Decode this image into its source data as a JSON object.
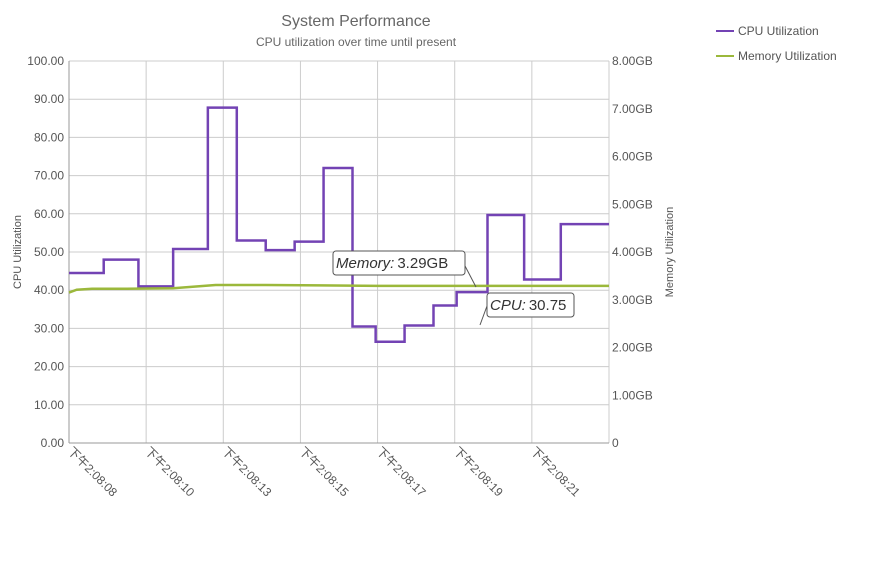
{
  "chart_data": {
    "type": "line",
    "title": "System Performance",
    "subtitle": "CPU utilization over time until present",
    "x_ticks": [
      "下午2:08:08",
      "下午2:08:10",
      "下午2:08:13",
      "下午2:08:15",
      "下午2:08:17",
      "下午2:08:19",
      "下午2:08:21"
    ],
    "x_range_seconds_after_2_08_08": [
      0,
      14
    ],
    "left_axis": {
      "label": "CPU Utilization",
      "ylim": [
        0,
        100
      ],
      "ticks": [
        "0.00",
        "10.00",
        "20.00",
        "30.00",
        "40.00",
        "50.00",
        "60.00",
        "70.00",
        "80.00",
        "90.00",
        "100.00"
      ]
    },
    "right_axis": {
      "label": "Memory Utilization",
      "ylim": [
        0,
        8
      ],
      "ticks": [
        "0",
        "1.00GB",
        "2.00GB",
        "3.00GB",
        "4.00GB",
        "5.00GB",
        "6.00GB",
        "7.00GB",
        "8.00GB"
      ]
    },
    "series": [
      {
        "name": "CPU Utilization",
        "axis": "left",
        "color": "#7343b4",
        "step": true,
        "x": [
          0,
          0.9,
          1.8,
          2.7,
          3.6,
          4.35,
          5.1,
          5.85,
          6.6,
          7.35,
          7.95,
          8.7,
          9.45,
          10.05,
          10.85,
          11.8,
          12.75,
          13.75,
          14
        ],
        "y": [
          44.5,
          48,
          41,
          50.8,
          87.8,
          53,
          50.5,
          52.7,
          72,
          30.5,
          26.5,
          30.75,
          36,
          39.5,
          59.7,
          42.8,
          57.3,
          57.3,
          57.3
        ]
      },
      {
        "name": "Memory Utilization",
        "axis": "right",
        "color": "#9bb83b",
        "step": false,
        "x": [
          0,
          0.2,
          0.6,
          1.5,
          2.7,
          3.8,
          5.1,
          6.5,
          8,
          9.5,
          11,
          12.5,
          14
        ],
        "y": [
          3.15,
          3.21,
          3.23,
          3.23,
          3.24,
          3.31,
          3.31,
          3.3,
          3.29,
          3.29,
          3.29,
          3.29,
          3.29
        ]
      }
    ],
    "grid": true,
    "legend_position": "top-right",
    "tooltips": [
      {
        "series": "Memory",
        "label": "Memory:",
        "value": "3.29GB"
      },
      {
        "series": "CPU",
        "label": "CPU:",
        "value": "30.75"
      }
    ]
  }
}
